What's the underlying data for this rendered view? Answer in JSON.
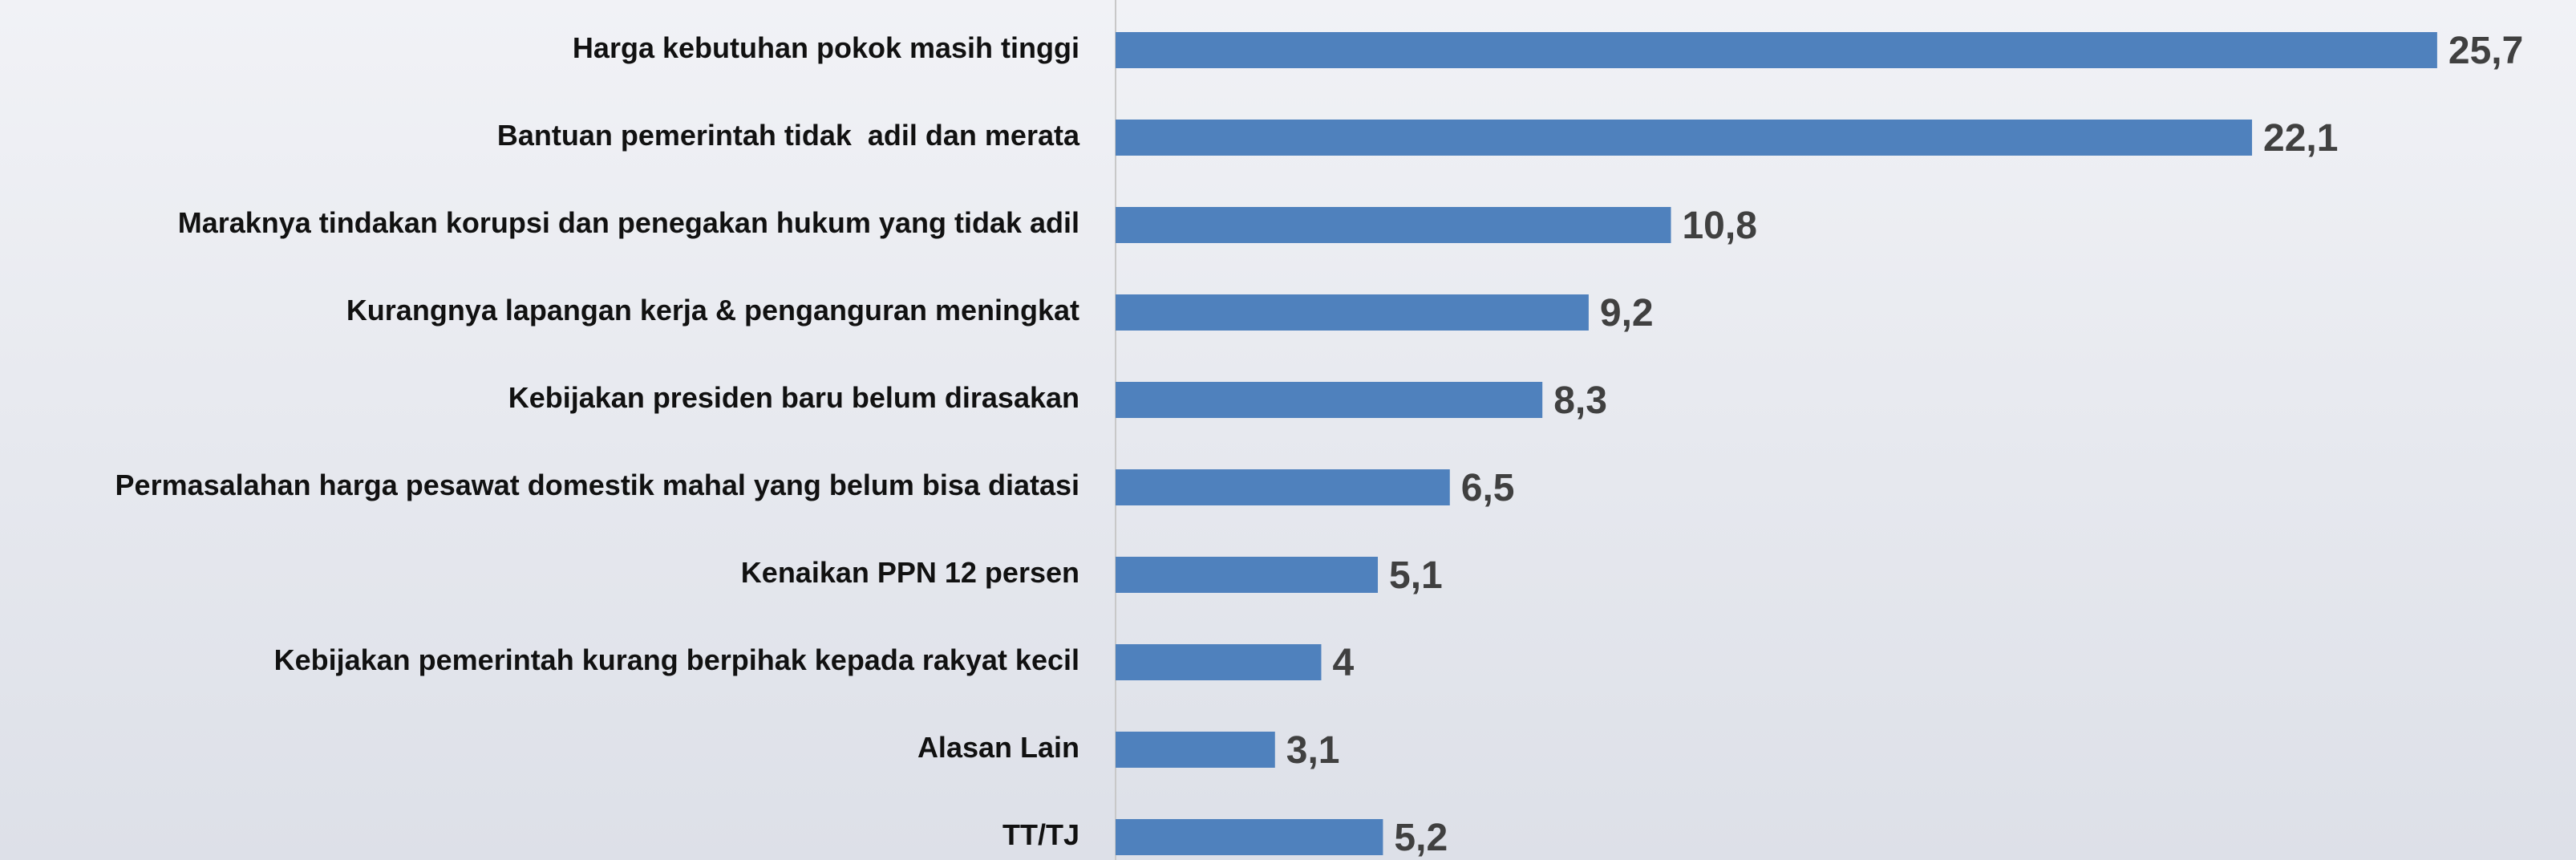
{
  "chart_data": {
    "type": "barh",
    "categories": [
      "Harga kebutuhan pokok masih tinggi",
      "Bantuan pemerintah tidak  adil dan merata",
      "Maraknya tindakan korupsi dan penegakan hukum yang tidak adil",
      "Kurangnya lapangan kerja & penganguran meningkat",
      "Kebijakan presiden baru belum dirasakan",
      "Permasalahan harga pesawat domestik mahal yang belum bisa diatasi",
      "Kenaikan PPN 12 persen",
      "Kebijakan pemerintah kurang berpihak kepada rakyat kecil",
      "Alasan Lain",
      "TT/TJ"
    ],
    "values": [
      25.7,
      22.1,
      10.8,
      9.2,
      8.3,
      6.5,
      5.1,
      4,
      3.1,
      5.2
    ],
    "value_labels": [
      "25,7",
      "22,1",
      "10,8",
      "9,2",
      "8,3",
      "6,5",
      "5,1",
      "4",
      "3,1",
      "5,2"
    ],
    "color": "#4f81bd",
    "xlim": [
      0,
      28.4
    ]
  }
}
